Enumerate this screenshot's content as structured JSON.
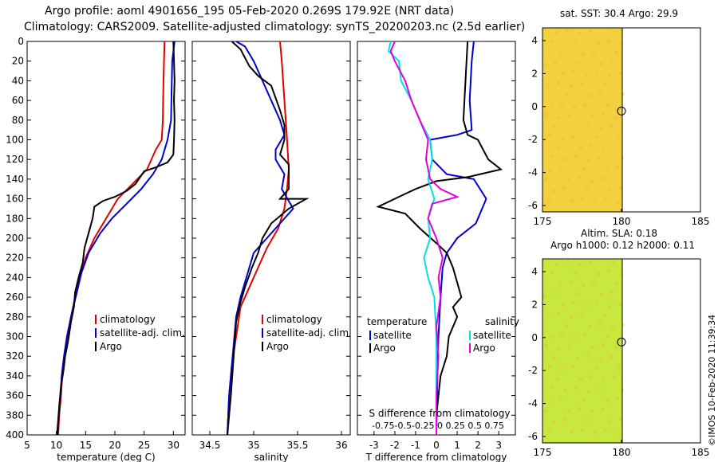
{
  "title_line1": "Argo profile: aoml 4901656_195 05-Feb-2020 0.269S 179.92E (NRT data)",
  "title_line2": "Climatology: CARS2009. Satellite-adjusted climatology: synTS_20200203.nc (2.5d earlier)",
  "colors": {
    "climatology": "#e00000",
    "satellite": "#0000cc",
    "argo": "#000000",
    "sat_temp": "#00e0e0",
    "sat_sal": "#e000e0"
  },
  "depth_ticks": [
    "0",
    "20",
    "40",
    "60",
    "80",
    "100",
    "120",
    "140",
    "160",
    "180",
    "200",
    "220",
    "240",
    "260",
    "280",
    "300",
    "320",
    "340",
    "360",
    "380",
    "400"
  ],
  "chart_data": [
    {
      "type": "line",
      "xlabel": "temperature (deg C)",
      "xlim": [
        5,
        32
      ],
      "ylim": [
        400,
        0
      ],
      "xticks": [
        "5",
        "10",
        "15",
        "20",
        "25",
        "30"
      ],
      "legend": [
        "climatology",
        "satellite-adj. clim.",
        "Argo"
      ],
      "series": [
        {
          "name": "climatology",
          "color": "climatology",
          "points": [
            [
              28.5,
              0
            ],
            [
              28.3,
              40
            ],
            [
              28.2,
              80
            ],
            [
              28.0,
              100
            ],
            [
              27.0,
              110
            ],
            [
              25.5,
              130
            ],
            [
              23,
              145
            ],
            [
              20.5,
              160
            ],
            [
              18.5,
              180
            ],
            [
              16.5,
              200
            ],
            [
              15,
              220
            ],
            [
              14,
              240
            ],
            [
              13.2,
              260
            ],
            [
              12.5,
              280
            ],
            [
              11.9,
              300
            ],
            [
              11.4,
              320
            ],
            [
              11.0,
              340
            ],
            [
              10.8,
              360
            ],
            [
              10.5,
              380
            ],
            [
              10.3,
              400
            ]
          ]
        },
        {
          "name": "satellite-adj. clim.",
          "color": "satellite",
          "points": [
            [
              30.2,
              0
            ],
            [
              29.8,
              20
            ],
            [
              29.7,
              50
            ],
            [
              29.6,
              80
            ],
            [
              29.0,
              100
            ],
            [
              28.0,
              120
            ],
            [
              26.5,
              135
            ],
            [
              24.5,
              150
            ],
            [
              22,
              165
            ],
            [
              19.5,
              180
            ],
            [
              17.5,
              195
            ],
            [
              15.5,
              215
            ],
            [
              14.3,
              235
            ],
            [
              13.3,
              260
            ],
            [
              12.5,
              280
            ],
            [
              11.8,
              300
            ],
            [
              11.3,
              320
            ],
            [
              10.9,
              340
            ],
            [
              10.7,
              360
            ],
            [
              10.4,
              380
            ],
            [
              10.2,
              400
            ]
          ]
        },
        {
          "name": "Argo",
          "color": "argo",
          "points": [
            [
              30.0,
              0
            ],
            [
              30.1,
              20
            ],
            [
              30.2,
              40
            ],
            [
              30.1,
              60
            ],
            [
              30.2,
              80
            ],
            [
              30.1,
              100
            ],
            [
              30.0,
              115
            ],
            [
              29.0,
              123
            ],
            [
              27.0,
              128
            ],
            [
              25.0,
              132
            ],
            [
              23.5,
              145
            ],
            [
              22,
              152
            ],
            [
              20,
              158
            ],
            [
              18,
              162
            ],
            [
              16.5,
              168
            ],
            [
              16.2,
              180
            ],
            [
              15.5,
              195
            ],
            [
              14.8,
              210
            ],
            [
              14.5,
              225
            ],
            [
              13.8,
              240
            ],
            [
              13.2,
              255
            ],
            [
              13.0,
              270
            ],
            [
              12.5,
              285
            ],
            [
              12.0,
              305
            ],
            [
              11.5,
              320
            ],
            [
              11.2,
              335
            ],
            [
              10.8,
              350
            ],
            [
              10.5,
              370
            ],
            [
              10.3,
              385
            ],
            [
              10.1,
              400
            ]
          ]
        }
      ]
    },
    {
      "type": "line",
      "xlabel": "salinity",
      "xlim": [
        34.3,
        36.1
      ],
      "ylim": [
        400,
        0
      ],
      "xticks": [
        "34.5",
        "35",
        "35.5",
        "36"
      ],
      "legend": [
        "climatology",
        "satellite-adj. clim.",
        "Argo"
      ],
      "series": [
        {
          "name": "climatology",
          "color": "climatology",
          "points": [
            [
              35.3,
              0
            ],
            [
              35.32,
              20
            ],
            [
              35.35,
              60
            ],
            [
              35.38,
              100
            ],
            [
              35.4,
              130
            ],
            [
              35.38,
              150
            ],
            [
              35.35,
              170
            ],
            [
              35.28,
              190
            ],
            [
              35.15,
              210
            ],
            [
              35.05,
              230
            ],
            [
              34.95,
              250
            ],
            [
              34.85,
              270
            ],
            [
              34.8,
              300
            ],
            [
              34.75,
              330
            ],
            [
              34.72,
              360
            ],
            [
              34.7,
              400
            ]
          ]
        },
        {
          "name": "satellite-adj. clim.",
          "color": "satellite",
          "points": [
            [
              34.8,
              0
            ],
            [
              34.9,
              5
            ],
            [
              35.0,
              20
            ],
            [
              35.1,
              40
            ],
            [
              35.2,
              60
            ],
            [
              35.3,
              80
            ],
            [
              35.35,
              95
            ],
            [
              35.25,
              110
            ],
            [
              35.25,
              120
            ],
            [
              35.35,
              135
            ],
            [
              35.32,
              150
            ],
            [
              35.45,
              170
            ],
            [
              35.3,
              185
            ],
            [
              35.15,
              200
            ],
            [
              35.0,
              215
            ],
            [
              34.95,
              230
            ],
            [
              34.9,
              245
            ],
            [
              34.85,
              260
            ],
            [
              34.8,
              280
            ],
            [
              34.78,
              300
            ],
            [
              34.75,
              330
            ],
            [
              34.72,
              360
            ],
            [
              34.7,
              400
            ]
          ]
        },
        {
          "name": "Argo",
          "color": "argo",
          "points": [
            [
              34.75,
              0
            ],
            [
              34.85,
              8
            ],
            [
              34.95,
              25
            ],
            [
              35.05,
              35
            ],
            [
              35.2,
              45
            ],
            [
              35.3,
              70
            ],
            [
              35.35,
              85
            ],
            [
              35.35,
              100
            ],
            [
              35.3,
              115
            ],
            [
              35.4,
              125
            ],
            [
              35.4,
              150
            ],
            [
              35.3,
              160
            ],
            [
              35.6,
              160
            ],
            [
              35.4,
              170
            ],
            [
              35.2,
              185
            ],
            [
              35.1,
              200
            ],
            [
              35.05,
              215
            ],
            [
              34.98,
              230
            ],
            [
              34.9,
              250
            ],
            [
              34.85,
              265
            ],
            [
              34.8,
              285
            ],
            [
              34.78,
              310
            ],
            [
              34.76,
              335
            ],
            [
              34.74,
              360
            ],
            [
              34.72,
              380
            ],
            [
              34.7,
              400
            ]
          ]
        }
      ]
    },
    {
      "type": "line",
      "xlabel": "T difference from climatology",
      "xlabel2": "S difference from climatology",
      "xlim": [
        -3.8,
        3.8
      ],
      "ylim": [
        400,
        0
      ],
      "xticks": [
        "-3",
        "-2",
        "-1",
        "0",
        "1",
        "2",
        "3"
      ],
      "top_ticks": "-0.75-0.5-0.25  0   0.25  0.5  0.75",
      "legend_left_title": "temperature",
      "legend_right_title": "salinity",
      "legend_left": [
        "satellite",
        "Argo"
      ],
      "legend_right": [
        "satellite",
        "Argo"
      ],
      "series": [
        {
          "name": "temperature satellite",
          "color": "satellite",
          "points": [
            [
              1.8,
              0
            ],
            [
              1.7,
              20
            ],
            [
              1.6,
              60
            ],
            [
              1.7,
              90
            ],
            [
              1.0,
              95
            ],
            [
              -0.3,
              100
            ],
            [
              -0.2,
              120
            ],
            [
              0.5,
              135
            ],
            [
              1.8,
              140
            ],
            [
              2.4,
              160
            ],
            [
              1.9,
              185
            ],
            [
              1.0,
              200
            ],
            [
              0.5,
              215
            ],
            [
              0.3,
              230
            ],
            [
              0.2,
              260
            ],
            [
              0.1,
              300
            ],
            [
              0.05,
              340
            ],
            [
              0,
              400
            ]
          ]
        },
        {
          "name": "temperature Argo",
          "color": "argo",
          "points": [
            [
              1.5,
              0
            ],
            [
              1.4,
              40
            ],
            [
              1.3,
              80
            ],
            [
              1.5,
              95
            ],
            [
              2.0,
              100
            ],
            [
              2.5,
              120
            ],
            [
              3.1,
              130
            ],
            [
              1.5,
              138
            ],
            [
              0,
              142
            ],
            [
              -1.0,
              150
            ],
            [
              -1.5,
              155
            ],
            [
              -2.8,
              168
            ],
            [
              -1.5,
              175
            ],
            [
              -0.8,
              190
            ],
            [
              0,
              205
            ],
            [
              0.5,
              215
            ],
            [
              0.8,
              230
            ],
            [
              1.0,
              245
            ],
            [
              1.2,
              260
            ],
            [
              0.8,
              270
            ],
            [
              1.0,
              280
            ],
            [
              0.6,
              300
            ],
            [
              0.5,
              320
            ],
            [
              0.2,
              340
            ],
            [
              0.1,
              360
            ],
            [
              0,
              380
            ],
            [
              0,
              400
            ]
          ]
        },
        {
          "name": "salinity satellite",
          "color": "sat_temp",
          "points": [
            [
              -2.2,
              0
            ],
            [
              -2.3,
              10
            ],
            [
              -1.8,
              20
            ],
            [
              -1.7,
              40
            ],
            [
              -1.2,
              60
            ],
            [
              -0.8,
              80
            ],
            [
              -0.3,
              100
            ],
            [
              -0.2,
              120
            ],
            [
              -0.4,
              140
            ],
            [
              -0.1,
              160
            ],
            [
              -0.4,
              180
            ],
            [
              -0.3,
              200
            ],
            [
              -0.6,
              220
            ],
            [
              -0.4,
              240
            ],
            [
              -0.1,
              260
            ],
            [
              0,
              300
            ],
            [
              0,
              340
            ],
            [
              0,
              400
            ]
          ]
        },
        {
          "name": "salinity Argo",
          "color": "sat_sal",
          "points": [
            [
              -2.0,
              0
            ],
            [
              -2.2,
              10
            ],
            [
              -2.0,
              20
            ],
            [
              -1.5,
              40
            ],
            [
              -1.2,
              60
            ],
            [
              -0.8,
              80
            ],
            [
              -0.4,
              100
            ],
            [
              -0.5,
              120
            ],
            [
              -0.3,
              140
            ],
            [
              0.2,
              150
            ],
            [
              1.0,
              158
            ],
            [
              -0.2,
              165
            ],
            [
              -0.4,
              180
            ],
            [
              0,
              200
            ],
            [
              0.3,
              220
            ],
            [
              0.1,
              240
            ],
            [
              0.2,
              260
            ],
            [
              0,
              290
            ],
            [
              0.1,
              320
            ],
            [
              0,
              360
            ],
            [
              0,
              400
            ]
          ]
        }
      ]
    }
  ],
  "map_top": {
    "title": "sat. SST: 30.4 Argo: 29.9",
    "xticks": [
      "175",
      "180",
      "185"
    ],
    "yticks": [
      "4",
      "2",
      "0",
      "-2",
      "-4",
      "-6"
    ]
  },
  "map_bottom": {
    "title1": "Altim. SLA: 0.18",
    "title2": "Argo h1000: 0.12 h2000: 0.11",
    "xticks": [
      "175",
      "180",
      "185"
    ],
    "yticks": [
      "4",
      "2",
      "0",
      "-2",
      "-4",
      "-6"
    ]
  },
  "copyright": "©IMOS 10-Feb-2020 11:39:34"
}
